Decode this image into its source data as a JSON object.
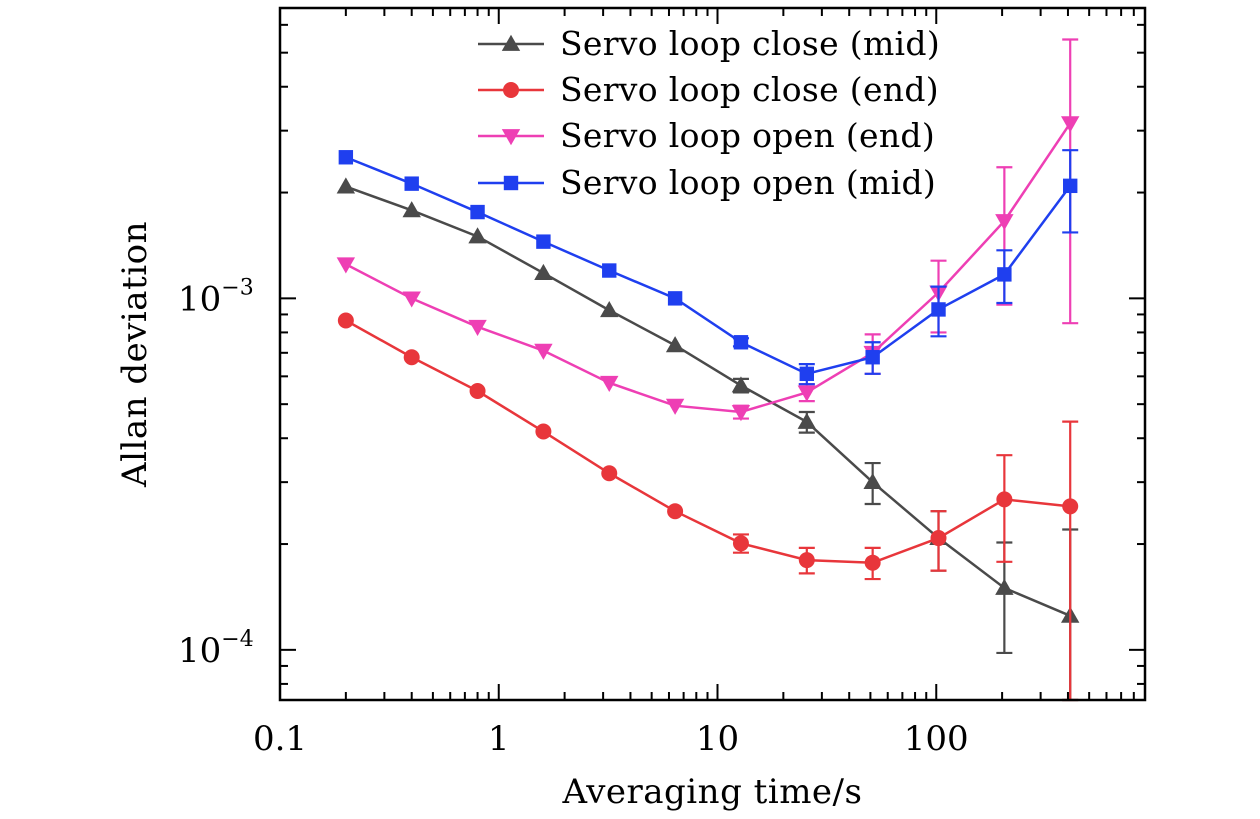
{
  "chart_data": {
    "type": "line",
    "xscale": "log",
    "yscale": "log",
    "xlabel": "Averaging time/s",
    "ylabel": "Allan deviation",
    "xlim": [
      0.1,
      900
    ],
    "ylim": [
      7.2e-05,
      0.0067
    ],
    "xticks": [
      {
        "value": 0.1,
        "label": "0.1"
      },
      {
        "value": 1,
        "label": "1"
      },
      {
        "value": 10,
        "label": "10"
      },
      {
        "value": 100,
        "label": "100"
      }
    ],
    "yticks": [
      {
        "value": 0.0001,
        "base": "10",
        "exp": "−4"
      },
      {
        "value": 0.001,
        "base": "10",
        "exp": "−3"
      }
    ],
    "legend_position": "top-center",
    "x": [
      0.2,
      0.4,
      0.8,
      1.6,
      3.2,
      6.4,
      12.8,
      25.6,
      51.2,
      102.4,
      204.8,
      409.6
    ],
    "series": [
      {
        "name": "Servo loop close (mid)",
        "color": "#4a4a4a",
        "marker": "triangle-up",
        "values": [
          0.00208,
          0.00178,
          0.0015,
          0.00118,
          0.000925,
          0.000735,
          0.000565,
          0.000445,
          0.0003,
          0.000208,
          0.00015,
          0.000125
        ],
        "err": [
          0,
          0,
          0,
          0,
          0,
          0,
          2.5e-05,
          3e-05,
          4e-05,
          4e-05,
          5.2e-05,
          9.5e-05
        ]
      },
      {
        "name": "Servo loop close (end)",
        "color": "#e8363b",
        "marker": "circle",
        "values": [
          0.000865,
          0.00068,
          0.000545,
          0.000418,
          0.000318,
          0.000248,
          0.000201,
          0.00018,
          0.000177,
          0.000208,
          0.000268,
          0.000256
        ],
        "err": [
          0,
          0,
          0,
          0,
          0,
          0,
          1.2e-05,
          1.5e-05,
          1.8e-05,
          4e-05,
          9e-05,
          0.00019
        ]
      },
      {
        "name": "Servo loop open (end)",
        "color": "#ee3fb4",
        "marker": "triangle-down",
        "values": [
          0.00125,
          0.001,
          0.00083,
          0.00071,
          0.000575,
          0.000495,
          0.000475,
          0.00054,
          0.0007,
          0.00104,
          0.00166,
          0.00315
        ],
        "err": [
          0,
          0,
          0,
          0,
          0,
          0,
          2e-05,
          3e-05,
          9e-05,
          0.00024,
          0.0007,
          0.0023
        ]
      },
      {
        "name": "Servo loop open (mid)",
        "color": "#1f3fef",
        "marker": "square",
        "values": [
          0.00252,
          0.00212,
          0.00176,
          0.00145,
          0.0012,
          0.001,
          0.00075,
          0.00061,
          0.00068,
          0.00093,
          0.00117,
          0.00209
        ],
        "err": [
          0,
          0,
          0,
          0,
          0,
          0,
          2e-05,
          4e-05,
          7e-05,
          0.00015,
          0.0002,
          0.00055
        ]
      }
    ]
  }
}
